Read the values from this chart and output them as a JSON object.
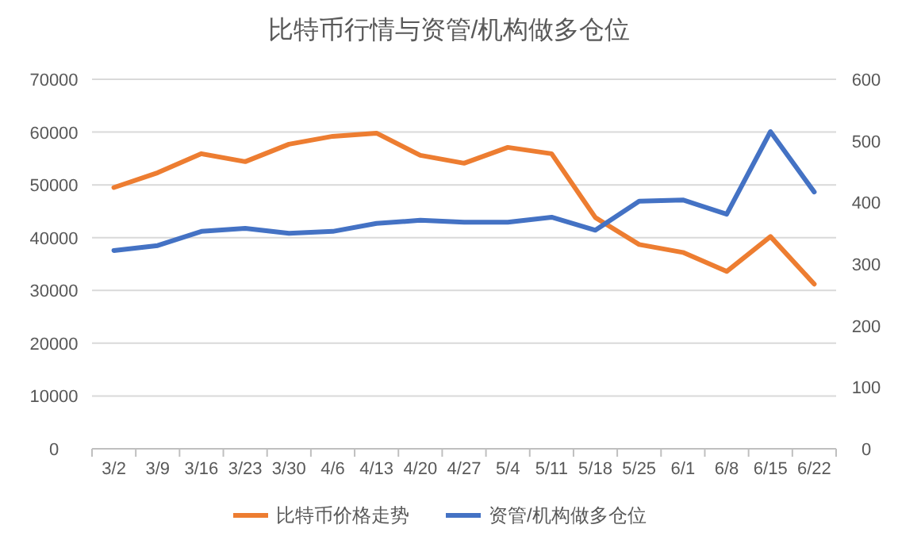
{
  "chart_data": {
    "type": "line",
    "title": "比特币行情与资管/机构做多仓位",
    "categories": [
      "3/2",
      "3/9",
      "3/16",
      "3/23",
      "3/30",
      "4/6",
      "4/13",
      "4/20",
      "4/27",
      "5/4",
      "5/11",
      "5/18",
      "5/25",
      "6/1",
      "6/8",
      "6/15",
      "6/22"
    ],
    "series": [
      {
        "name": "比特币价格走势",
        "color": "#ed7d31",
        "values": [
          49500,
          52300,
          55900,
          54400,
          57700,
          59200,
          59800,
          55600,
          54100,
          57100,
          55900,
          43800,
          38700,
          37200,
          33600,
          40200,
          31200
        ]
      },
      {
        "name": "资管/机构做多仓位",
        "color": "#4472c4",
        "axis": "y2",
        "values": [
          322,
          330,
          353,
          358,
          350,
          353,
          366,
          371,
          368,
          368,
          376,
          355,
          402,
          404,
          381,
          515,
          417
        ]
      }
    ],
    "ylim": [
      0,
      70000
    ],
    "yticks": [
      0,
      10000,
      20000,
      30000,
      40000,
      50000,
      60000,
      70000
    ],
    "y2lim": [
      0,
      600
    ],
    "y2ticks": [
      0,
      100,
      200,
      300,
      400,
      500,
      600
    ],
    "grid": "y",
    "legend": "bottom",
    "marker": "none",
    "line_style": "solid"
  }
}
